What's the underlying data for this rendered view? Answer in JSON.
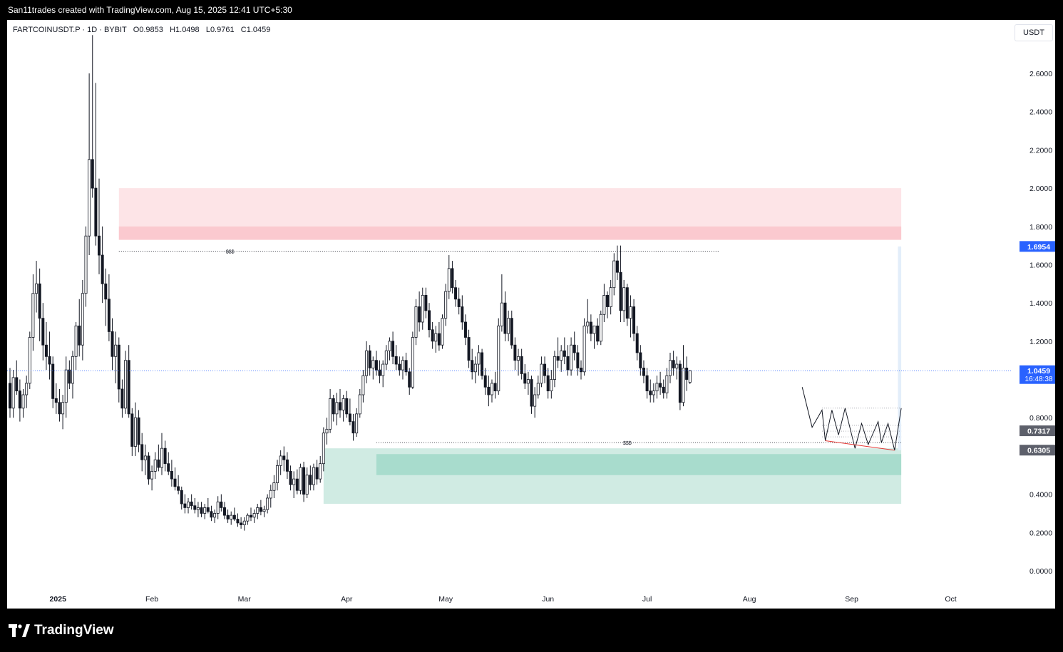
{
  "header": {
    "attribution": "San11trades created with TradingView.com, Aug 15, 2025 12:41 UTC+5:30"
  },
  "legend": {
    "symbol_line": "FARTCOINUSDT.P · 1D · BYBIT   O0.9853   H1.0498   L0.9761   C1.0459",
    "unit": "USDT"
  },
  "footer": {
    "logo_text": "TradingView"
  },
  "colors": {
    "up": "#131722",
    "down": "#131722",
    "supply_zone": "#fde4e7",
    "supply_band": "#fbc9cf",
    "demand_zone": "#d0ebe3",
    "demand_band": "#a8dccd",
    "target_box": "#e3eefa",
    "last_price_badge": "#2962ff",
    "high_badge": "#2962ff",
    "projection_badge": "#5d606b"
  },
  "chart_data": {
    "type": "candlestick",
    "timeframe": "1D",
    "ylim": [
      -0.1,
      2.9
    ],
    "y_ticks": [
      "2.6000",
      "2.4000",
      "2.2000",
      "2.0000",
      "1.8000",
      "1.6000",
      "1.4000",
      "1.2000",
      "0.8000",
      "0.4000",
      "0.2000",
      "0.0000"
    ],
    "x_labels": [
      "2025",
      "Feb",
      "Mar",
      "Apr",
      "May",
      "Jun",
      "Jul",
      "Aug",
      "Sep",
      "Oct"
    ],
    "last_price": {
      "value": "1.0459",
      "countdown": "16:48:38"
    },
    "price_labels": [
      {
        "value": "1.6954",
        "kind": "high"
      },
      {
        "value": "0.7317",
        "kind": "projection"
      },
      {
        "value": "0.6305",
        "kind": "projection"
      }
    ],
    "annotations": [
      {
        "text": "$$$",
        "price": 1.67
      },
      {
        "text": "$$$",
        "price": 0.67
      }
    ],
    "zones": [
      {
        "name": "supply",
        "top": 2.0,
        "bottom": 1.73,
        "start": "2025-01-22",
        "end": "2025-09-16"
      },
      {
        "name": "demand",
        "top": 0.64,
        "bottom": 0.35,
        "start": "2025-03-25",
        "end": "2025-09-16"
      },
      {
        "name": "target",
        "top": 1.6954,
        "bottom": 0.6305,
        "start": "2025-09-15",
        "end": "2025-09-16"
      }
    ],
    "ohlc_start": "2024-12-20",
    "ohlc": [
      [
        0.98,
        1.06,
        0.8,
        0.85
      ],
      [
        0.85,
        1.05,
        0.8,
        1.01
      ],
      [
        1.01,
        1.1,
        0.92,
        0.94
      ],
      [
        0.94,
        1.0,
        0.78,
        0.85
      ],
      [
        0.85,
        0.95,
        0.8,
        0.92
      ],
      [
        0.92,
        1.02,
        0.85,
        0.98
      ],
      [
        0.98,
        1.25,
        0.95,
        1.22
      ],
      [
        1.22,
        1.55,
        1.15,
        1.45
      ],
      [
        1.45,
        1.62,
        1.35,
        1.5
      ],
      [
        1.5,
        1.58,
        1.2,
        1.32
      ],
      [
        1.32,
        1.4,
        1.1,
        1.18
      ],
      [
        1.18,
        1.3,
        1.05,
        1.12
      ],
      [
        1.12,
        1.25,
        1.0,
        1.08
      ],
      [
        1.08,
        1.12,
        0.85,
        0.9
      ],
      [
        0.9,
        0.98,
        0.82,
        0.88
      ],
      [
        0.88,
        0.95,
        0.78,
        0.82
      ],
      [
        0.82,
        0.92,
        0.74,
        0.88
      ],
      [
        0.88,
        1.12,
        0.8,
        1.05
      ],
      [
        1.05,
        1.1,
        0.95,
        0.98
      ],
      [
        0.98,
        1.15,
        0.9,
        1.12
      ],
      [
        1.12,
        1.3,
        1.05,
        1.28
      ],
      [
        1.28,
        1.42,
        1.12,
        1.18
      ],
      [
        1.18,
        1.52,
        1.1,
        1.45
      ],
      [
        1.45,
        1.8,
        1.38,
        1.75
      ],
      [
        1.75,
        2.6,
        1.65,
        2.15
      ],
      [
        2.15,
        2.8,
        1.95,
        2.0
      ],
      [
        2.0,
        2.55,
        1.7,
        1.75
      ],
      [
        1.75,
        2.05,
        1.55,
        1.65
      ],
      [
        1.65,
        1.8,
        1.4,
        1.5
      ],
      [
        1.5,
        1.58,
        1.28,
        1.42
      ],
      [
        1.42,
        1.55,
        1.2,
        1.25
      ],
      [
        1.25,
        1.32,
        1.05,
        1.12
      ],
      [
        1.12,
        1.25,
        0.98,
        1.18
      ],
      [
        1.18,
        1.22,
        0.88,
        0.95
      ],
      [
        0.95,
        1.0,
        0.8,
        0.85
      ],
      [
        0.85,
        1.15,
        0.82,
        1.1
      ],
      [
        1.1,
        1.18,
        0.8,
        0.82
      ],
      [
        0.82,
        0.85,
        0.6,
        0.65
      ],
      [
        0.65,
        0.88,
        0.6,
        0.8
      ],
      [
        0.8,
        0.84,
        0.62,
        0.66
      ],
      [
        0.66,
        0.72,
        0.52,
        0.58
      ],
      [
        0.58,
        0.66,
        0.5,
        0.6
      ],
      [
        0.6,
        0.62,
        0.45,
        0.48
      ],
      [
        0.48,
        0.55,
        0.42,
        0.52
      ],
      [
        0.52,
        0.62,
        0.48,
        0.58
      ],
      [
        0.58,
        0.66,
        0.52,
        0.54
      ],
      [
        0.54,
        0.72,
        0.5,
        0.64
      ],
      [
        0.64,
        0.68,
        0.52,
        0.56
      ],
      [
        0.56,
        0.62,
        0.5,
        0.52
      ],
      [
        0.52,
        0.58,
        0.44,
        0.48
      ],
      [
        0.48,
        0.54,
        0.42,
        0.44
      ],
      [
        0.44,
        0.5,
        0.4,
        0.42
      ],
      [
        0.42,
        0.44,
        0.32,
        0.35
      ],
      [
        0.35,
        0.4,
        0.3,
        0.33
      ],
      [
        0.33,
        0.38,
        0.3,
        0.36
      ],
      [
        0.36,
        0.4,
        0.32,
        0.34
      ],
      [
        0.34,
        0.38,
        0.3,
        0.32
      ],
      [
        0.32,
        0.36,
        0.28,
        0.33
      ],
      [
        0.33,
        0.36,
        0.28,
        0.3
      ],
      [
        0.3,
        0.35,
        0.27,
        0.33
      ],
      [
        0.33,
        0.38,
        0.3,
        0.31
      ],
      [
        0.31,
        0.34,
        0.26,
        0.28
      ],
      [
        0.28,
        0.32,
        0.25,
        0.3
      ],
      [
        0.3,
        0.39,
        0.27,
        0.36
      ],
      [
        0.36,
        0.4,
        0.31,
        0.33
      ],
      [
        0.33,
        0.36,
        0.27,
        0.29
      ],
      [
        0.29,
        0.32,
        0.25,
        0.27
      ],
      [
        0.27,
        0.31,
        0.24,
        0.29
      ],
      [
        0.29,
        0.33,
        0.26,
        0.27
      ],
      [
        0.27,
        0.3,
        0.23,
        0.25
      ],
      [
        0.25,
        0.28,
        0.22,
        0.24
      ],
      [
        0.24,
        0.28,
        0.21,
        0.26
      ],
      [
        0.26,
        0.3,
        0.24,
        0.29
      ],
      [
        0.29,
        0.33,
        0.26,
        0.28
      ],
      [
        0.28,
        0.32,
        0.25,
        0.3
      ],
      [
        0.3,
        0.35,
        0.27,
        0.33
      ],
      [
        0.33,
        0.37,
        0.29,
        0.31
      ],
      [
        0.31,
        0.34,
        0.28,
        0.32
      ],
      [
        0.32,
        0.4,
        0.3,
        0.38
      ],
      [
        0.38,
        0.45,
        0.33,
        0.42
      ],
      [
        0.42,
        0.5,
        0.38,
        0.46
      ],
      [
        0.46,
        0.58,
        0.42,
        0.55
      ],
      [
        0.55,
        0.63,
        0.5,
        0.6
      ],
      [
        0.6,
        0.65,
        0.52,
        0.58
      ],
      [
        0.58,
        0.62,
        0.48,
        0.52
      ],
      [
        0.52,
        0.55,
        0.42,
        0.45
      ],
      [
        0.45,
        0.52,
        0.38,
        0.48
      ],
      [
        0.48,
        0.53,
        0.4,
        0.42
      ],
      [
        0.42,
        0.56,
        0.4,
        0.54
      ],
      [
        0.54,
        0.57,
        0.36,
        0.4
      ],
      [
        0.4,
        0.54,
        0.38,
        0.5
      ],
      [
        0.5,
        0.55,
        0.42,
        0.45
      ],
      [
        0.45,
        0.56,
        0.42,
        0.54
      ],
      [
        0.54,
        0.58,
        0.45,
        0.48
      ],
      [
        0.48,
        0.6,
        0.46,
        0.56
      ],
      [
        0.56,
        0.75,
        0.52,
        0.72
      ],
      [
        0.72,
        0.8,
        0.66,
        0.74
      ],
      [
        0.74,
        0.95,
        0.72,
        0.9
      ],
      [
        0.9,
        0.92,
        0.78,
        0.82
      ],
      [
        0.82,
        0.93,
        0.76,
        0.88
      ],
      [
        0.88,
        0.95,
        0.8,
        0.84
      ],
      [
        0.84,
        0.92,
        0.78,
        0.9
      ],
      [
        0.9,
        0.94,
        0.8,
        0.82
      ],
      [
        0.82,
        0.9,
        0.76,
        0.78
      ],
      [
        0.78,
        0.82,
        0.68,
        0.72
      ],
      [
        0.72,
        0.85,
        0.7,
        0.82
      ],
      [
        0.82,
        0.95,
        0.8,
        0.92
      ],
      [
        0.92,
        1.05,
        0.88,
        1.02
      ],
      [
        1.02,
        1.2,
        0.98,
        1.15
      ],
      [
        1.15,
        1.18,
        1.02,
        1.06
      ],
      [
        1.06,
        1.12,
        1.0,
        1.1
      ],
      [
        1.1,
        1.15,
        1.02,
        1.05
      ],
      [
        1.05,
        1.1,
        0.98,
        1.02
      ],
      [
        1.02,
        1.1,
        0.96,
        1.08
      ],
      [
        1.08,
        1.18,
        1.05,
        1.15
      ],
      [
        1.15,
        1.22,
        1.1,
        1.2
      ],
      [
        1.2,
        1.25,
        1.08,
        1.12
      ],
      [
        1.12,
        1.18,
        1.05,
        1.08
      ],
      [
        1.08,
        1.12,
        1.02,
        1.05
      ],
      [
        1.05,
        1.12,
        1.0,
        1.1
      ],
      [
        1.1,
        1.14,
        1.02,
        1.04
      ],
      [
        1.04,
        1.06,
        0.92,
        0.96
      ],
      [
        0.96,
        1.25,
        0.95,
        1.22
      ],
      [
        1.22,
        1.42,
        1.18,
        1.38
      ],
      [
        1.38,
        1.46,
        1.25,
        1.3
      ],
      [
        1.3,
        1.48,
        1.26,
        1.44
      ],
      [
        1.44,
        1.48,
        1.32,
        1.36
      ],
      [
        1.36,
        1.4,
        1.22,
        1.26
      ],
      [
        1.26,
        1.3,
        1.16,
        1.2
      ],
      [
        1.2,
        1.28,
        1.14,
        1.24
      ],
      [
        1.24,
        1.3,
        1.15,
        1.18
      ],
      [
        1.18,
        1.34,
        1.16,
        1.32
      ],
      [
        1.32,
        1.5,
        1.28,
        1.46
      ],
      [
        1.46,
        1.65,
        1.42,
        1.58
      ],
      [
        1.58,
        1.62,
        1.45,
        1.48
      ],
      [
        1.48,
        1.52,
        1.38,
        1.42
      ],
      [
        1.42,
        1.48,
        1.34,
        1.38
      ],
      [
        1.38,
        1.44,
        1.26,
        1.3
      ],
      [
        1.3,
        1.34,
        1.18,
        1.22
      ],
      [
        1.22,
        1.26,
        1.06,
        1.1
      ],
      [
        1.1,
        1.16,
        1.0,
        1.04
      ],
      [
        1.04,
        1.12,
        0.98,
        1.08
      ],
      [
        1.08,
        1.18,
        1.02,
        1.14
      ],
      [
        1.14,
        1.16,
        1.0,
        1.02
      ],
      [
        1.02,
        1.06,
        0.92,
        0.96
      ],
      [
        0.96,
        1.02,
        0.86,
        0.92
      ],
      [
        0.92,
        1.0,
        0.88,
        0.98
      ],
      [
        0.98,
        1.04,
        0.9,
        0.94
      ],
      [
        0.94,
        1.32,
        0.92,
        1.28
      ],
      [
        1.28,
        1.55,
        1.25,
        1.4
      ],
      [
        1.4,
        1.46,
        1.2,
        1.24
      ],
      [
        1.24,
        1.36,
        1.2,
        1.32
      ],
      [
        1.32,
        1.36,
        1.16,
        1.18
      ],
      [
        1.18,
        1.22,
        1.05,
        1.1
      ],
      [
        1.1,
        1.16,
        1.02,
        1.12
      ],
      [
        1.12,
        1.16,
        1.0,
        1.03
      ],
      [
        1.03,
        1.08,
        0.95,
        0.98
      ],
      [
        0.98,
        1.04,
        0.92,
        1.0
      ],
      [
        1.0,
        1.02,
        0.82,
        0.86
      ],
      [
        0.86,
        0.96,
        0.8,
        0.92
      ],
      [
        0.92,
        1.02,
        0.9,
        0.98
      ],
      [
        0.98,
        1.12,
        0.96,
        1.08
      ],
      [
        1.08,
        1.12,
        0.98,
        1.02
      ],
      [
        1.02,
        1.06,
        0.9,
        0.94
      ],
      [
        0.94,
        1.05,
        0.9,
        1.0
      ],
      [
        1.0,
        1.15,
        0.96,
        1.12
      ],
      [
        1.12,
        1.22,
        1.06,
        1.1
      ],
      [
        1.1,
        1.18,
        1.04,
        1.15
      ],
      [
        1.15,
        1.22,
        1.08,
        1.12
      ],
      [
        1.12,
        1.18,
        1.02,
        1.05
      ],
      [
        1.05,
        1.22,
        1.02,
        1.18
      ],
      [
        1.18,
        1.25,
        1.1,
        1.14
      ],
      [
        1.14,
        1.18,
        1.02,
        1.06
      ],
      [
        1.06,
        1.1,
        1.0,
        1.04
      ],
      [
        1.04,
        1.32,
        1.02,
        1.28
      ],
      [
        1.28,
        1.42,
        1.24,
        1.3
      ],
      [
        1.3,
        1.34,
        1.2,
        1.24
      ],
      [
        1.24,
        1.28,
        1.16,
        1.28
      ],
      [
        1.28,
        1.32,
        1.18,
        1.2
      ],
      [
        1.2,
        1.36,
        1.18,
        1.34
      ],
      [
        1.34,
        1.5,
        1.3,
        1.44
      ],
      [
        1.44,
        1.46,
        1.32,
        1.38
      ],
      [
        1.38,
        1.52,
        1.34,
        1.48
      ],
      [
        1.48,
        1.66,
        1.44,
        1.62
      ],
      [
        1.62,
        1.7,
        1.52,
        1.56
      ],
      [
        1.56,
        1.7,
        1.3,
        1.36
      ],
      [
        1.36,
        1.52,
        1.3,
        1.48
      ],
      [
        1.48,
        1.5,
        1.28,
        1.32
      ],
      [
        1.32,
        1.44,
        1.22,
        1.38
      ],
      [
        1.38,
        1.42,
        1.2,
        1.24
      ],
      [
        1.24,
        1.28,
        1.1,
        1.14
      ],
      [
        1.14,
        1.18,
        1.02,
        1.06
      ],
      [
        1.06,
        1.1,
        0.98,
        1.02
      ],
      [
        1.02,
        1.06,
        0.9,
        0.94
      ],
      [
        0.94,
        1.0,
        0.88,
        0.92
      ],
      [
        0.92,
        0.98,
        0.88,
        0.94
      ],
      [
        0.94,
        1.02,
        0.9,
        0.98
      ],
      [
        0.98,
        1.04,
        0.92,
        0.96
      ],
      [
        0.96,
        1.0,
        0.9,
        0.93
      ],
      [
        0.93,
        1.06,
        0.9,
        1.02
      ],
      [
        1.02,
        1.14,
        0.98,
        1.1
      ],
      [
        1.1,
        1.15,
        1.02,
        1.06
      ],
      [
        1.06,
        1.12,
        1.0,
        1.08
      ],
      [
        1.08,
        1.1,
        0.84,
        0.88
      ],
      [
        0.88,
        1.18,
        0.86,
        1.06
      ],
      [
        1.06,
        1.12,
        0.94,
        1.0
      ],
      [
        0.9853,
        1.0498,
        0.9761,
        1.0459
      ]
    ],
    "projection_path": [
      [
        "2025-08-17",
        0.96
      ],
      [
        "2025-08-20",
        0.75
      ],
      [
        "2025-08-23",
        0.84
      ],
      [
        "2025-08-24",
        0.68
      ],
      [
        "2025-08-26",
        0.84
      ],
      [
        "2025-08-28",
        0.71
      ],
      [
        "2025-08-30",
        0.85
      ],
      [
        "2025-09-02",
        0.64
      ],
      [
        "2025-09-04",
        0.77
      ],
      [
        "2025-09-06",
        0.66
      ],
      [
        "2025-09-09",
        0.78
      ],
      [
        "2025-09-10",
        0.67
      ],
      [
        "2025-09-12",
        0.77
      ],
      [
        "2025-09-14",
        0.63
      ],
      [
        "2025-09-16",
        0.85
      ]
    ]
  }
}
